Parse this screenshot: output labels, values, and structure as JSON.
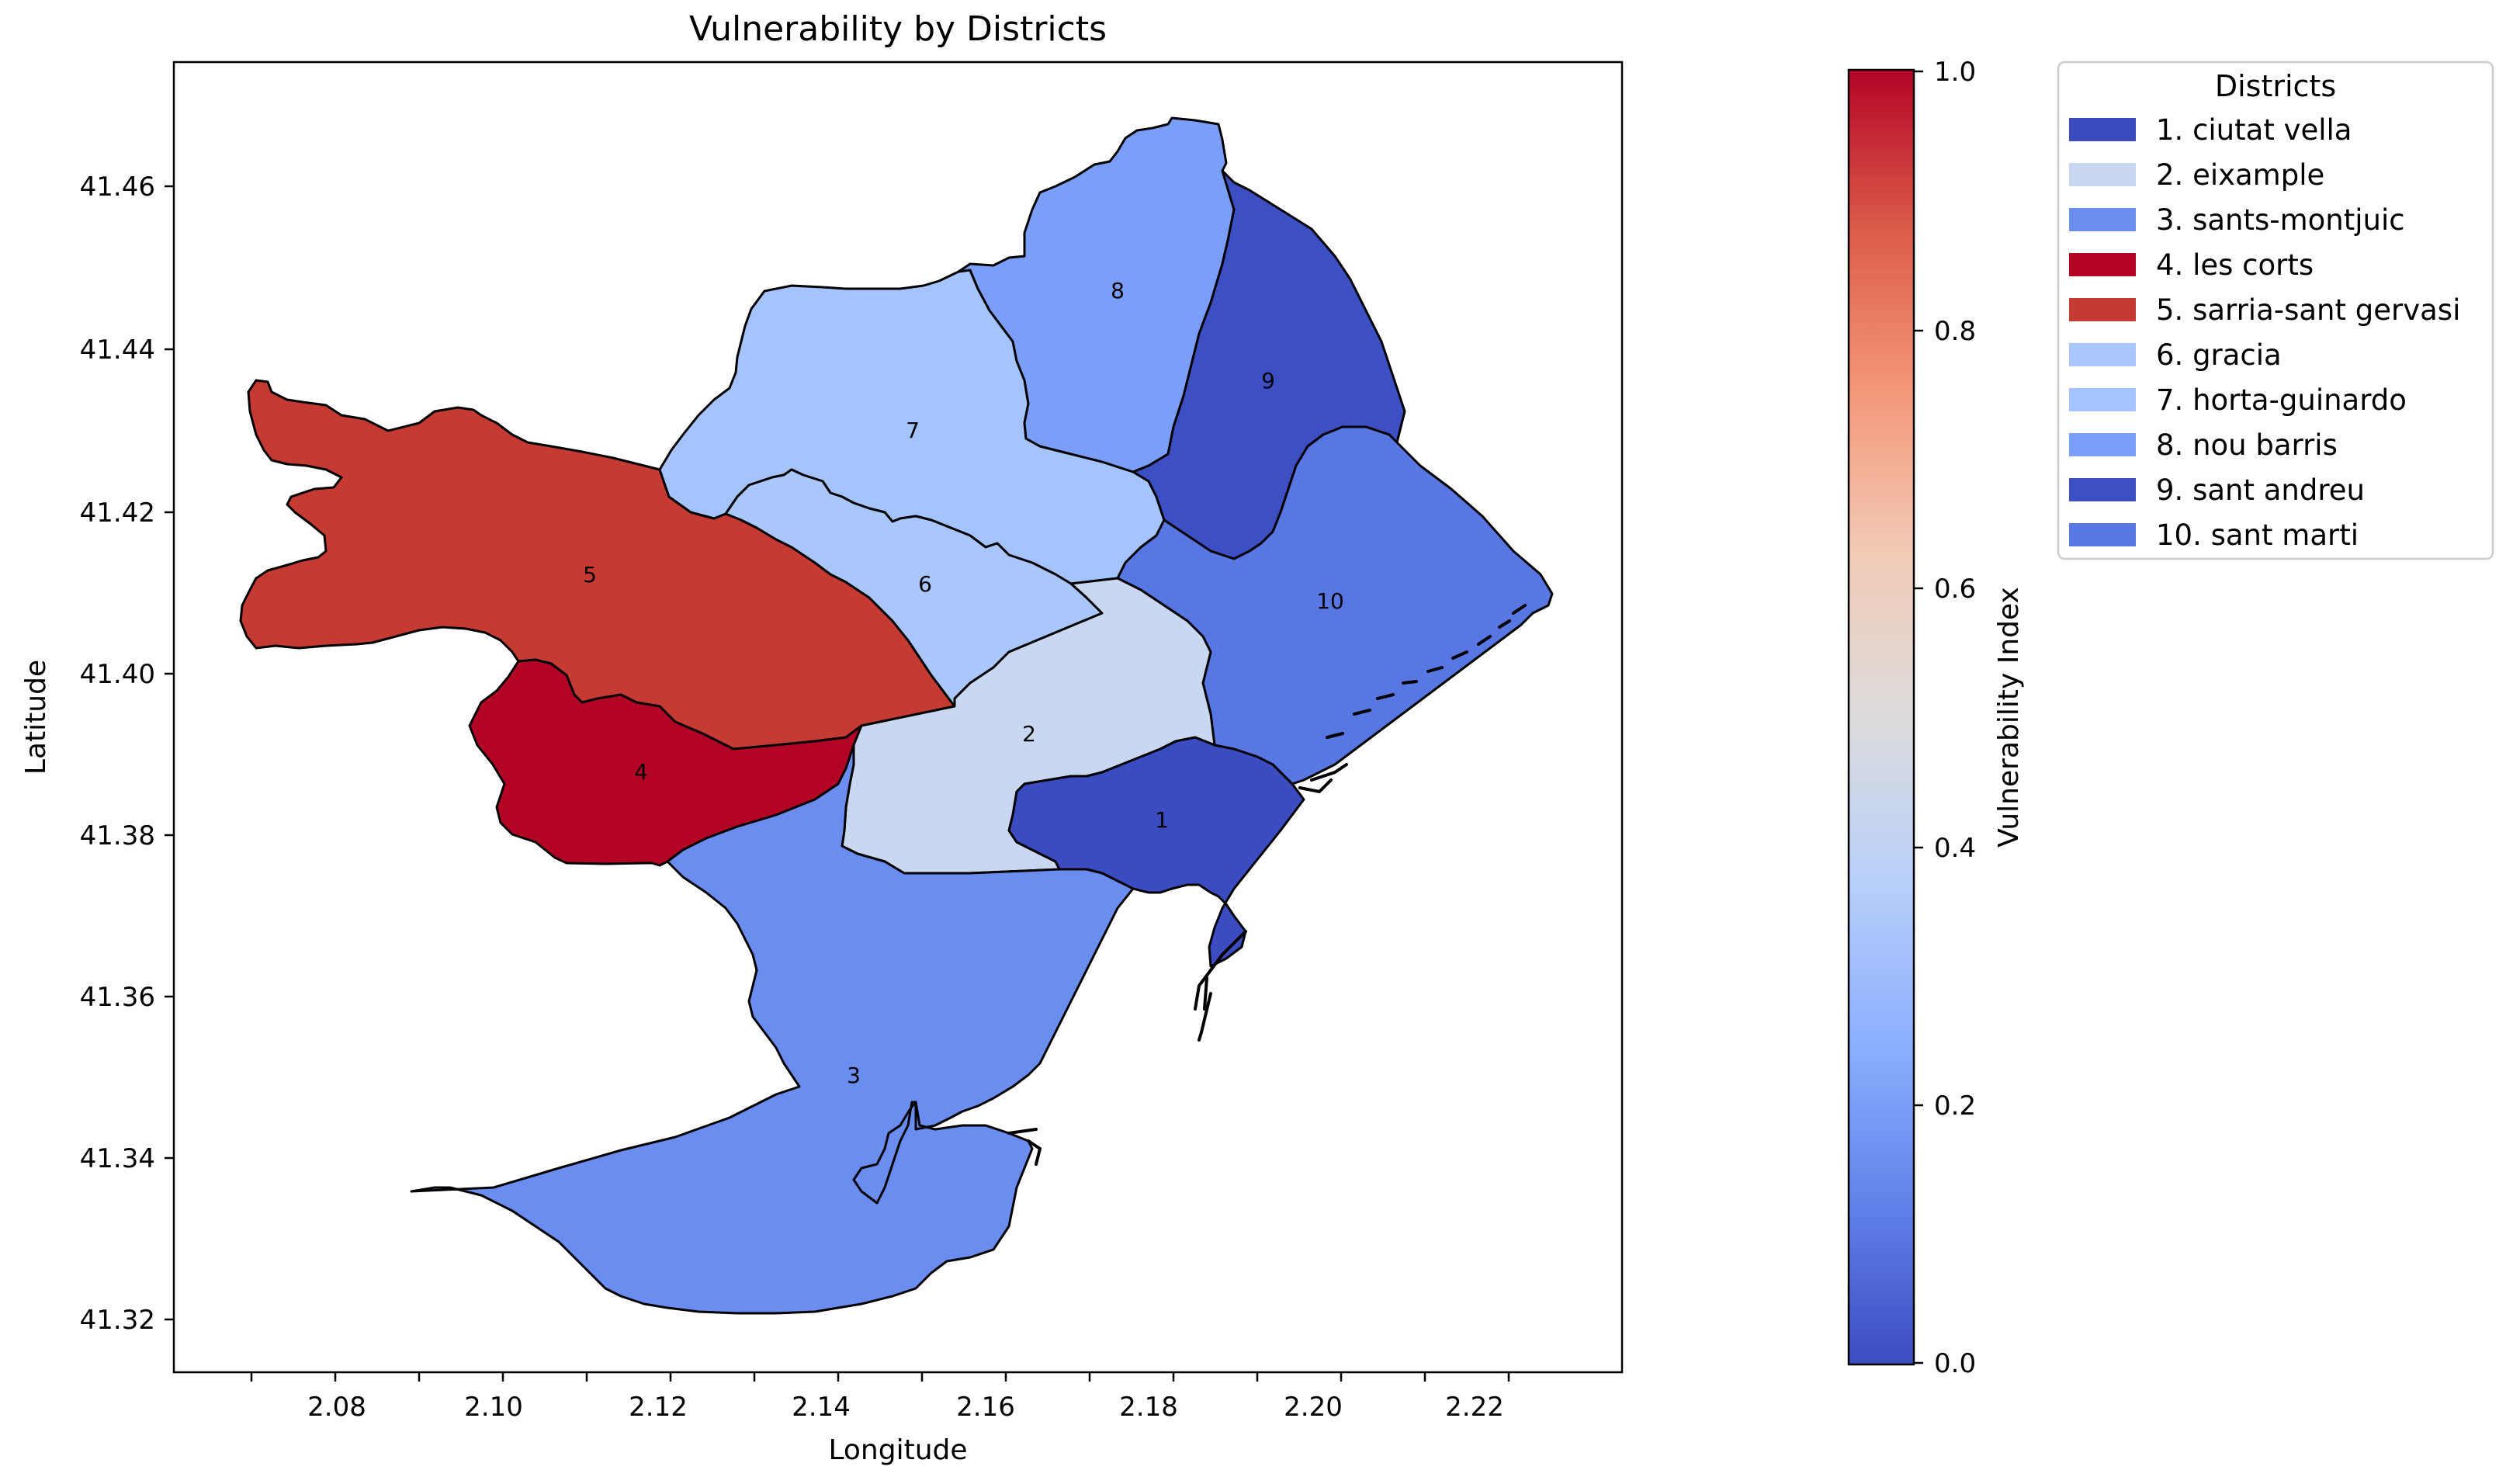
{
  "title": "Vulnerability by Districts",
  "xlabel": "Longitude",
  "ylabel": "Latitude",
  "x_ticks": [
    "2.08",
    "2.10",
    "2.12",
    "2.14",
    "2.16",
    "2.18",
    "2.20",
    "2.22"
  ],
  "y_ticks": [
    "41.46",
    "41.44",
    "41.42",
    "41.40",
    "41.38",
    "41.36",
    "41.34",
    "41.32"
  ],
  "colorbar": {
    "label": "Vulnerability Index",
    "ticks": [
      "1.0",
      "0.8",
      "0.6",
      "0.4",
      "0.2",
      "0.0"
    ],
    "colors": [
      "#b40426",
      "#dc5d4a",
      "#f4987a",
      "#f2cbb7",
      "#dddcdc",
      "#b9d0f9",
      "#8db0fe",
      "#6282ea",
      "#3b4cc0"
    ]
  },
  "legend": {
    "title": "Districts",
    "items": [
      {
        "label": "1. ciutat vella",
        "color": "#3b4cc0"
      },
      {
        "label": "2. eixample",
        "color": "#c9d7f0"
      },
      {
        "label": "3. sants-montjuic",
        "color": "#6b8df0"
      },
      {
        "label": "4. les corts",
        "color": "#b40426"
      },
      {
        "label": "5. sarria-sant gervasi",
        "color": "#c53a32"
      },
      {
        "label": "6. gracia",
        "color": "#aac7fd"
      },
      {
        "label": "7. horta-guinardo",
        "color": "#a5c3fe"
      },
      {
        "label": "8. nou barris",
        "color": "#7b9ff9"
      },
      {
        "label": "9. sant andreu",
        "color": "#3d50c3"
      },
      {
        "label": "10. sant marti",
        "color": "#5977e3"
      }
    ]
  },
  "districts": [
    {
      "id": "1",
      "name": "ciutat vella",
      "color": "#3b4cc0"
    },
    {
      "id": "2",
      "name": "eixample",
      "color": "#c9d7f0"
    },
    {
      "id": "3",
      "name": "sants-montjuic",
      "color": "#6b8df0"
    },
    {
      "id": "4",
      "name": "les corts",
      "color": "#b40426"
    },
    {
      "id": "5",
      "name": "sarria-sant gervasi",
      "color": "#c53a32"
    },
    {
      "id": "6",
      "name": "gracia",
      "color": "#aac7fd"
    },
    {
      "id": "7",
      "name": "horta-guinardo",
      "color": "#a5c3fe"
    },
    {
      "id": "8",
      "name": "nou barris",
      "color": "#7b9ff9"
    },
    {
      "id": "9",
      "name": "sant andreu",
      "color": "#3d50c3"
    },
    {
      "id": "10",
      "name": "sant marti",
      "color": "#5977e3"
    }
  ]
}
